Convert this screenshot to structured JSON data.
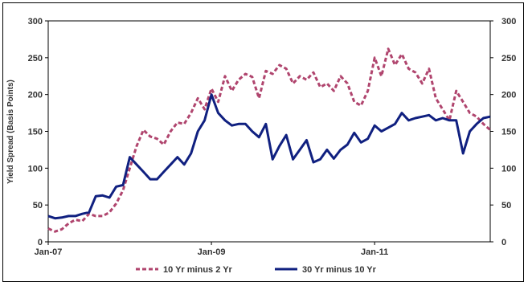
{
  "chart_data": {
    "type": "line",
    "title": "",
    "xlabel": "",
    "ylabel": "Yield Spread (Basis Points)",
    "ylim": [
      0,
      300
    ],
    "yticks": [
      0,
      50,
      100,
      150,
      200,
      250,
      300
    ],
    "right_axis_ticks": [
      0,
      50,
      100,
      150,
      200,
      250,
      300
    ],
    "x_range": [
      "2007-01",
      "2012-06"
    ],
    "xtick_labels": [
      "Jan-07",
      "Jan-09",
      "Jan-11"
    ],
    "xtick_dates": [
      "2007-01",
      "2009-01",
      "2011-01"
    ],
    "grid": false,
    "legend_position": "bottom",
    "x": [
      "2007-01",
      "2007-02",
      "2007-03",
      "2007-04",
      "2007-05",
      "2007-06",
      "2007-07",
      "2007-08",
      "2007-09",
      "2007-10",
      "2007-11",
      "2007-12",
      "2008-01",
      "2008-02",
      "2008-03",
      "2008-04",
      "2008-05",
      "2008-06",
      "2008-07",
      "2008-08",
      "2008-09",
      "2008-10",
      "2008-11",
      "2008-12",
      "2009-01",
      "2009-02",
      "2009-03",
      "2009-04",
      "2009-05",
      "2009-06",
      "2009-07",
      "2009-08",
      "2009-09",
      "2009-10",
      "2009-11",
      "2009-12",
      "2010-01",
      "2010-02",
      "2010-03",
      "2010-04",
      "2010-05",
      "2010-06",
      "2010-07",
      "2010-08",
      "2010-09",
      "2010-10",
      "2010-11",
      "2010-12",
      "2011-01",
      "2011-02",
      "2011-03",
      "2011-04",
      "2011-05",
      "2011-06",
      "2011-07",
      "2011-08",
      "2011-09",
      "2011-10",
      "2011-11",
      "2011-12",
      "2012-01",
      "2012-02",
      "2012-03",
      "2012-04",
      "2012-05",
      "2012-06"
    ],
    "series": [
      {
        "name": "10 Yr minus 2 Yr",
        "color": "#B0456E",
        "style": "dashed",
        "values": [
          18,
          14,
          17,
          25,
          30,
          28,
          38,
          35,
          35,
          40,
          52,
          70,
          100,
          130,
          152,
          143,
          140,
          132,
          150,
          162,
          160,
          175,
          195,
          180,
          208,
          190,
          225,
          205,
          220,
          228,
          224,
          195,
          232,
          228,
          240,
          235,
          215,
          225,
          220,
          230,
          210,
          215,
          205,
          225,
          215,
          190,
          185,
          205,
          250,
          225,
          262,
          240,
          255,
          235,
          230,
          215,
          235,
          195,
          180,
          165,
          205,
          190,
          175,
          170,
          160,
          152
        ]
      },
      {
        "name": "30 Yr minus 10 Yr",
        "color": "#102080",
        "style": "solid",
        "values": [
          35,
          32,
          33,
          35,
          35,
          38,
          40,
          62,
          63,
          60,
          75,
          77,
          115,
          105,
          95,
          85,
          85,
          95,
          105,
          115,
          105,
          120,
          150,
          165,
          200,
          175,
          165,
          158,
          160,
          160,
          150,
          142,
          160,
          112,
          130,
          145,
          112,
          125,
          138,
          108,
          112,
          125,
          113,
          125,
          132,
          148,
          135,
          140,
          158,
          150,
          155,
          160,
          175,
          165,
          168,
          170,
          172,
          165,
          168,
          165,
          165,
          120,
          150,
          160,
          168,
          170
        ]
      }
    ]
  }
}
